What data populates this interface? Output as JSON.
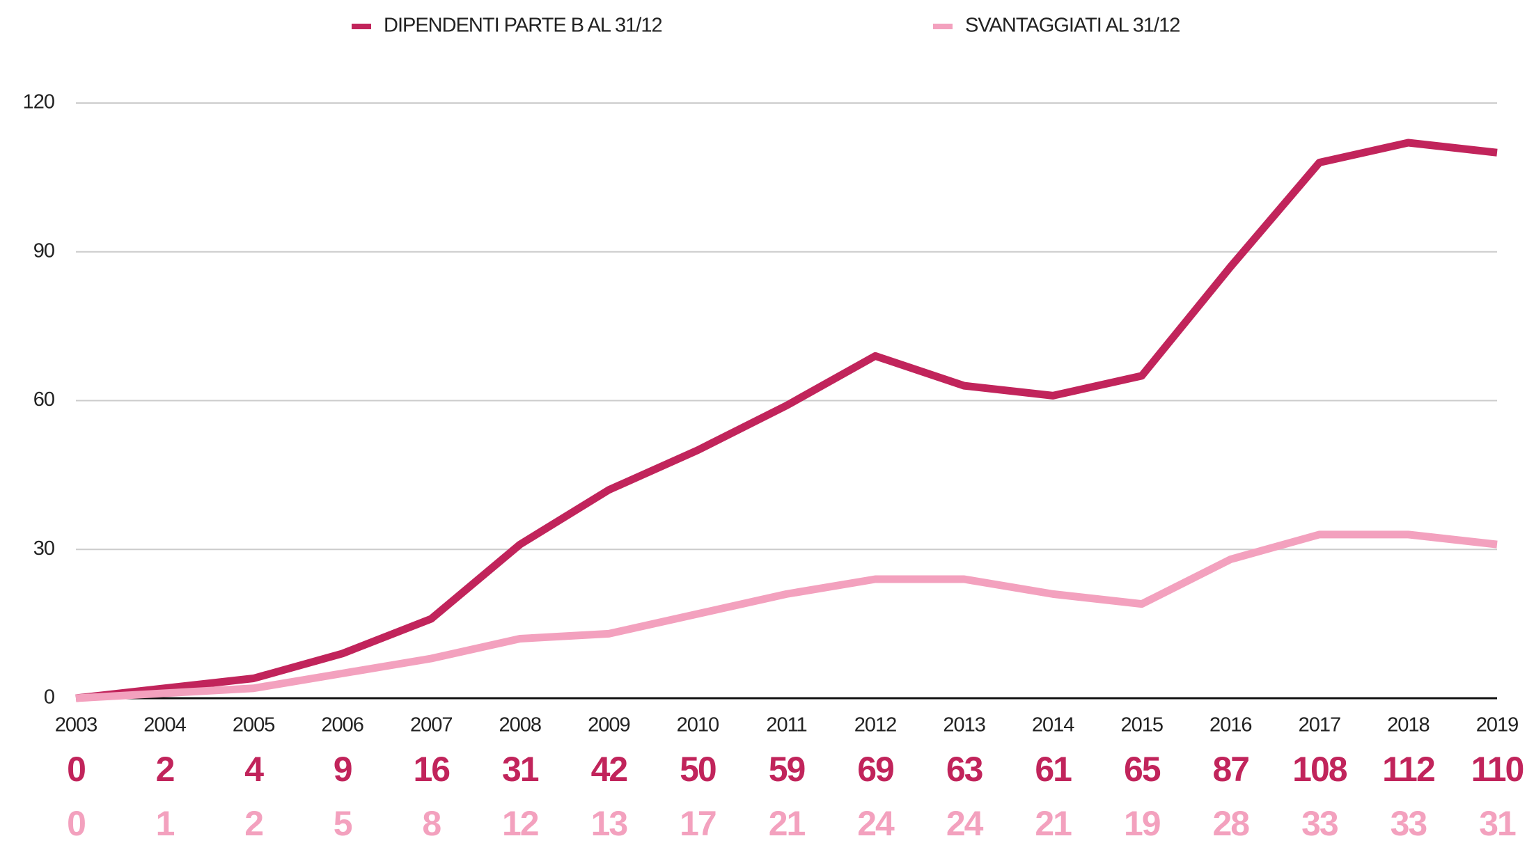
{
  "chart_data": {
    "type": "line",
    "x": [
      2003,
      2004,
      2005,
      2006,
      2007,
      2008,
      2009,
      2010,
      2011,
      2012,
      2013,
      2014,
      2015,
      2016,
      2017,
      2018,
      2019
    ],
    "series": [
      {
        "name": "DIPENDENTI PARTE B AL 31/12",
        "color": "#c1245b",
        "values": [
          0,
          2,
          4,
          9,
          16,
          31,
          42,
          50,
          59,
          69,
          63,
          61,
          65,
          87,
          108,
          112,
          110
        ]
      },
      {
        "name": "SVANTAGGIATI AL 31/12",
        "color": "#f3a1be",
        "values": [
          0,
          1,
          2,
          5,
          8,
          12,
          13,
          17,
          21,
          24,
          24,
          21,
          19,
          28,
          33,
          33,
          31
        ]
      }
    ],
    "xlim": [
      2003,
      2019
    ],
    "xticks": [
      2003,
      2004,
      2005,
      2006,
      2007,
      2008,
      2009,
      2010,
      2011,
      2012,
      2013,
      2014,
      2015,
      2016,
      2017,
      2018,
      2019
    ],
    "ylim": [
      0,
      120
    ],
    "yticks": [
      0,
      30,
      60,
      90,
      120
    ],
    "grid": true,
    "legend": "top"
  }
}
